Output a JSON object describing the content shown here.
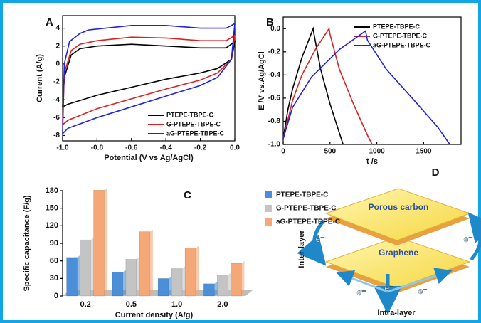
{
  "chart_data": [
    {
      "type": "line",
      "label": "A",
      "xlabel": "Potential (V vs Ag/AgCl)",
      "ylabel": "Current (A/g)",
      "xlim": [
        -1.0,
        0.0
      ],
      "ylim": [
        -8.6,
        5.4
      ],
      "xticks": [
        {
          "value": -1.0,
          "label": "-1.0"
        },
        -0.8,
        -0.6,
        -0.4,
        -0.2,
        {
          "value": 0.0,
          "label": "0.0"
        }
      ],
      "yticks": [
        -8,
        -6,
        -4,
        -2,
        0,
        2,
        4
      ],
      "series": [
        {
          "name": "PTEPE-TBPE-C",
          "color": "#000000",
          "x": [
            -1.0,
            -0.99,
            -0.95,
            -0.9,
            -0.8,
            -0.6,
            -0.4,
            -0.2,
            -0.05,
            0.0,
            -0.02,
            -0.1,
            -0.2,
            -0.4,
            -0.6,
            -0.8,
            -0.97,
            -1.0
          ],
          "values": [
            -4.8,
            -1.5,
            1.0,
            1.7,
            2.0,
            2.2,
            2.0,
            1.8,
            1.8,
            2.5,
            0.5,
            -0.5,
            -1.0,
            -1.7,
            -2.6,
            -3.5,
            -4.5,
            -4.8
          ]
        },
        {
          "name": "G-PTEPE-TBPE-C",
          "color": "#e02020",
          "x": [
            -1.0,
            -0.99,
            -0.95,
            -0.9,
            -0.8,
            -0.6,
            -0.4,
            -0.2,
            -0.05,
            0.0,
            -0.02,
            -0.1,
            -0.2,
            -0.4,
            -0.6,
            -0.8,
            -0.97,
            -1.0
          ],
          "values": [
            -6.8,
            -1.0,
            1.5,
            2.2,
            2.6,
            3.0,
            2.9,
            2.6,
            2.6,
            3.2,
            0.5,
            -1.0,
            -1.8,
            -2.8,
            -3.9,
            -5.0,
            -6.3,
            -6.8
          ]
        },
        {
          "name": "aG-PTEPE-TBPE-C",
          "color": "#2020e0",
          "x": [
            -1.0,
            -0.99,
            -0.96,
            -0.9,
            -0.85,
            -0.6,
            -0.4,
            -0.2,
            -0.05,
            0.0,
            -0.02,
            -0.1,
            -0.2,
            -0.4,
            -0.6,
            -0.8,
            -0.97,
            -1.0
          ],
          "values": [
            -7.8,
            0.0,
            2.5,
            3.4,
            3.8,
            4.3,
            4.3,
            4.0,
            4.0,
            4.5,
            0.5,
            -1.5,
            -2.4,
            -3.6,
            -4.8,
            -6.0,
            -7.2,
            -7.8
          ]
        }
      ]
    },
    {
      "type": "line",
      "label": "B",
      "xlabel": "t /s",
      "ylabel": "E /V vs.Ag/AgCl",
      "xlim": [
        0,
        1900
      ],
      "ylim": [
        -1.0,
        0.1
      ],
      "xticks": [
        0,
        500,
        1000,
        1500
      ],
      "yticks": [
        {
          "value": -1.0,
          "label": "-1.0"
        },
        -0.8,
        -0.6,
        -0.4,
        -0.2,
        {
          "value": 0.0,
          "label": "0.0"
        }
      ],
      "series": [
        {
          "name": "PTEPE-TBPE-C",
          "color": "#000000",
          "x": [
            0,
            50,
            100,
            200,
            320,
            330,
            400,
            500,
            600,
            640
          ],
          "values": [
            -0.95,
            -0.7,
            -0.52,
            -0.25,
            0.0,
            -0.05,
            -0.35,
            -0.65,
            -0.9,
            -1.0
          ]
        },
        {
          "name": "G-PTEPE-TBPE-C",
          "color": "#e02020",
          "x": [
            0,
            100,
            200,
            350,
            490,
            500,
            600,
            750,
            900,
            950
          ],
          "values": [
            -0.95,
            -0.62,
            -0.4,
            -0.17,
            0.0,
            -0.05,
            -0.35,
            -0.65,
            -0.92,
            -1.0
          ]
        },
        {
          "name": "aG-PTEPE-TBPE-C",
          "color": "#2020e0",
          "x": [
            0,
            100,
            300,
            600,
            880,
            900,
            1100,
            1400,
            1650,
            1780
          ],
          "values": [
            -0.95,
            -0.68,
            -0.42,
            -0.18,
            -0.02,
            -0.1,
            -0.35,
            -0.62,
            -0.85,
            -1.0
          ]
        }
      ]
    },
    {
      "type": "bar",
      "label": "C",
      "xlabel": "Current density (A/g)",
      "ylabel": "Specific capacitance (F/g)",
      "ylim": [
        0,
        180
      ],
      "yticks": [
        0,
        30,
        60,
        90,
        120,
        150,
        180
      ],
      "categories": [
        "0.2",
        "0.5",
        "1.0",
        "2.0"
      ],
      "series": [
        {
          "name": "PTEPE-TBPE-C",
          "color": "#4a8fd8",
          "values": [
            66,
            41,
            30,
            21
          ]
        },
        {
          "name": "G-PTEPE-TBPE-C",
          "color": "#c4c4c4",
          "values": [
            96,
            63,
            47,
            36
          ]
        },
        {
          "name": "aG-PTEPE-TBPE-C",
          "color": "#f4a878",
          "values": [
            181,
            110,
            82,
            56
          ]
        }
      ]
    }
  ],
  "diagram": {
    "label": "D",
    "top_layer": "Porous carbon",
    "bottom_layer": "Graphene",
    "inter": "Inter-layer",
    "intra": "Intra-layer",
    "electrons": [
      "e⁻",
      "e⁻",
      "e⁻",
      "e⁻",
      "e⁻"
    ]
  }
}
